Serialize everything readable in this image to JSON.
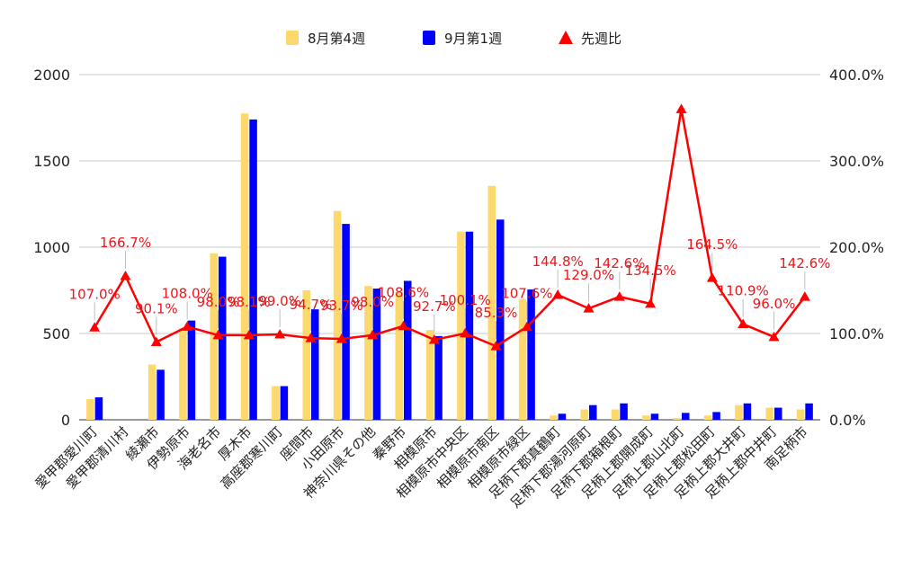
{
  "chart_data": {
    "type": "bar",
    "categories": [
      "愛甲郡愛川町",
      "愛甲郡清川村",
      "綾瀬市",
      "伊勢原市",
      "海老名市",
      "厚木市",
      "高座郡寒川町",
      "座間市",
      "小田原市",
      "神奈川県その他",
      "秦野市",
      "相模原市",
      "相模原市中央区",
      "相模原市南区",
      "相模原市緑区",
      "足柄下郡真鶴町",
      "足柄下郡湯河原町",
      "足柄下郡箱根町",
      "足柄上郡開成町",
      "足柄上郡山北町",
      "足柄上郡松田町",
      "足柄上郡大井町",
      "足柄上郡中井町",
      "南足柄市"
    ],
    "series": [
      {
        "name": "8月第4週",
        "axis": "left",
        "kind": "bar",
        "color": "#fdd86c",
        "values": [
          120,
          0,
          320,
          530,
          965,
          1775,
          195,
          750,
          1210,
          775,
          740,
          520,
          1090,
          1355,
          700,
          25,
          60,
          60,
          25,
          10,
          25,
          85,
          70,
          60
        ]
      },
      {
        "name": "9月第1週",
        "axis": "left",
        "kind": "bar",
        "color": "#0000ff",
        "values": [
          130,
          0,
          290,
          575,
          945,
          1740,
          195,
          640,
          1135,
          760,
          805,
          485,
          1090,
          1160,
          755,
          35,
          85,
          95,
          35,
          40,
          45,
          95,
          70,
          95
        ]
      },
      {
        "name": "先週比",
        "axis": "right",
        "kind": "line",
        "color": "#ff0000",
        "values": [
          107.0,
          166.7,
          90.1,
          108.0,
          98.0,
          98.1,
          99.0,
          94.7,
          93.7,
          98.0,
          108.6,
          92.7,
          100.1,
          85.3,
          107.6,
          144.8,
          129.0,
          142.6,
          134.5,
          360.0,
          164.5,
          110.9,
          96.0,
          142.6
        ],
        "labels": [
          "107.0%",
          "166.7%",
          "90.1%",
          "108.0%",
          "98.0%",
          "98.1%",
          "99.0%",
          "94.7%",
          "93.7%",
          "98.0%",
          "108.6%",
          "92.7%",
          "100.1%",
          "85.3%",
          "107.6%",
          "144.8%",
          "129.0%",
          "142.6%",
          "134.5%",
          "",
          "164.5%",
          "110.9%",
          "96.0%",
          "142.6%"
        ]
      }
    ],
    "left_axis": {
      "min": 0,
      "max": 2000,
      "ticks": [
        0,
        500,
        1000,
        1500,
        2000
      ]
    },
    "right_axis": {
      "min": 0,
      "max": 400,
      "ticks": [
        0,
        100,
        200,
        300,
        400
      ],
      "format": "{v}.0%"
    },
    "grid": true,
    "legend": "top-center",
    "title": "",
    "xlabel": "",
    "ylabel": ""
  }
}
